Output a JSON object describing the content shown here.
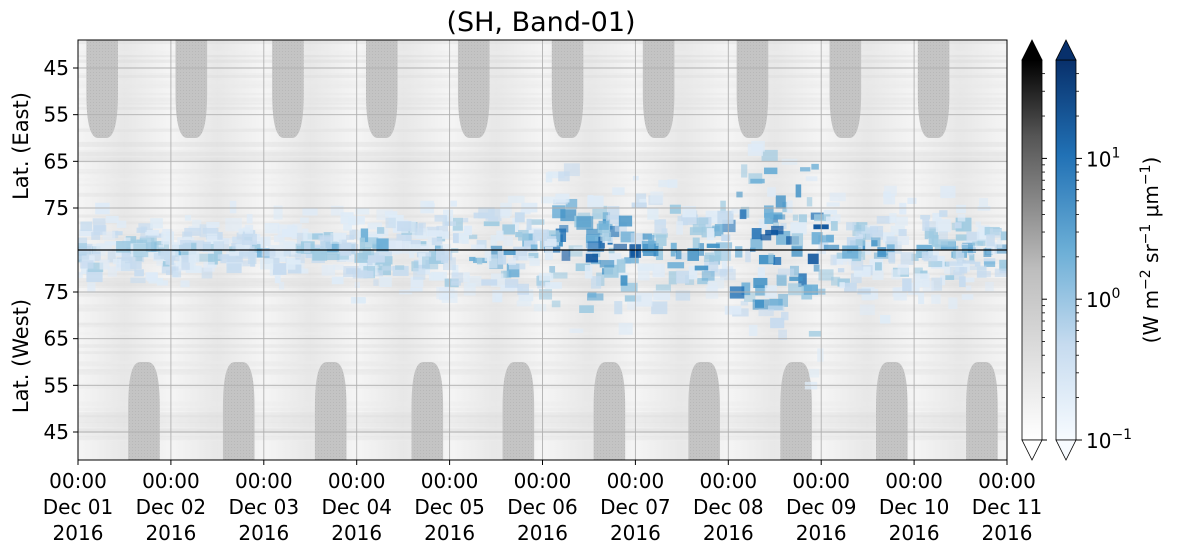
{
  "chart_data": {
    "type": "heatmap",
    "title": "(SH, Band-01)",
    "ylabel_east": "Lat. (East)",
    "ylabel_west": "Lat. (West)",
    "y_ticks_east": [
      "45",
      "55",
      "65",
      "75"
    ],
    "y_ticks_west": [
      "75",
      "65",
      "55",
      "45"
    ],
    "x_ticks": [
      {
        "time": "00:00",
        "date": "Dec 01",
        "year": "2016"
      },
      {
        "time": "00:00",
        "date": "Dec 02",
        "year": "2016"
      },
      {
        "time": "00:00",
        "date": "Dec 03",
        "year": "2016"
      },
      {
        "time": "00:00",
        "date": "Dec 04",
        "year": "2016"
      },
      {
        "time": "00:00",
        "date": "Dec 05",
        "year": "2016"
      },
      {
        "time": "00:00",
        "date": "Dec 06",
        "year": "2016"
      },
      {
        "time": "00:00",
        "date": "Dec 07",
        "year": "2016"
      },
      {
        "time": "00:00",
        "date": "Dec 08",
        "year": "2016"
      },
      {
        "time": "00:00",
        "date": "Dec 09",
        "year": "2016"
      },
      {
        "time": "00:00",
        "date": "Dec 10",
        "year": "2016"
      },
      {
        "time": "00:00",
        "date": "Dec 11",
        "year": "2016"
      }
    ],
    "x_range": [
      "2016-12-01 00:00",
      "2016-12-11 00:00"
    ],
    "y_range_east_deg": [
      39,
      84
    ],
    "y_range_west_deg": [
      39,
      84
    ],
    "grid": true,
    "colorbar": {
      "label_parts": [
        "(W m",
        "−2",
        " sr",
        "−1",
        " μm",
        "−1",
        ")"
      ],
      "scale": "log",
      "range": [
        0.1,
        50
      ],
      "ticks": [
        {
          "base": "10",
          "exp": "1",
          "value": 10
        },
        {
          "base": "10",
          "exp": "0",
          "value": 1
        },
        {
          "base": "10",
          "exp": "−1",
          "value": 0.1
        }
      ],
      "gray_colormap": "greys",
      "blue_colormap": "blues",
      "extend": "both"
    },
    "colors": {
      "blue_dark": "#08306b",
      "blue_mid": "#3a8ac4",
      "blue_light": "#c6dbef",
      "gray_block": "#c4c4c4",
      "gray_background": "#f0f0f0"
    },
    "daylight_block_centers_day": [
      0.26,
      1.22,
      2.26,
      3.27,
      4.26,
      5.27,
      6.25,
      7.26,
      8.26,
      9.21
    ],
    "night_block_centers_day": [
      0.71,
      1.73,
      2.72,
      3.76,
      4.74,
      5.72,
      6.74,
      7.73,
      8.76,
      9.73
    ],
    "emission_intensity_by_day": [
      1.5,
      1.2,
      1.3,
      2.0,
      3.0,
      5.0,
      3.5,
      8.0,
      3.0,
      2.5
    ]
  }
}
